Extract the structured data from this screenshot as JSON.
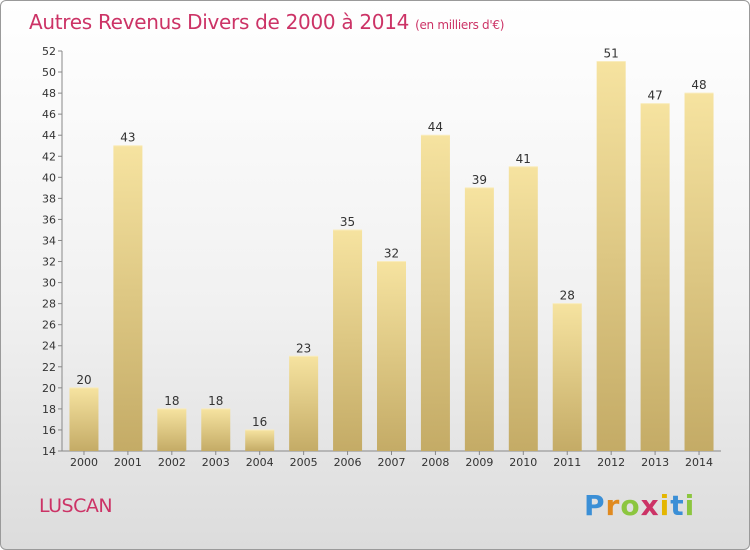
{
  "header": {
    "title": "Autres Revenus Divers de 2000 à 2014",
    "subtitle": "(en milliers d'€)"
  },
  "footer": {
    "place": "LUSCAN"
  },
  "logo": {
    "letters": [
      "P",
      "r",
      "o",
      "x",
      "i",
      "t",
      "i"
    ],
    "colors": [
      "#3b8fd6",
      "#e08a20",
      "#8cc63f",
      "#cc3366",
      "#e4b600",
      "#3b8fd6",
      "#8cc63f"
    ]
  },
  "colors": {
    "accent": "#cc3366",
    "bar_light": "#f6e3a0",
    "bar_dark": "#c4ab66"
  },
  "chart_data": {
    "type": "bar",
    "title": "Autres Revenus Divers de 2000 à 2014",
    "subtitle": "(en milliers d'€)",
    "categories": [
      "2000",
      "2001",
      "2002",
      "2003",
      "2004",
      "2005",
      "2006",
      "2007",
      "2008",
      "2009",
      "2010",
      "2011",
      "2012",
      "2013",
      "2014"
    ],
    "values": [
      20,
      43,
      18,
      18,
      16,
      23,
      35,
      32,
      44,
      39,
      41,
      28,
      51,
      47,
      48
    ],
    "ylim": [
      14,
      52
    ],
    "yticks": [
      14,
      16,
      18,
      20,
      22,
      24,
      26,
      28,
      30,
      32,
      34,
      36,
      38,
      40,
      42,
      44,
      46,
      48,
      50,
      52
    ],
    "grid": false,
    "legend": "none"
  }
}
